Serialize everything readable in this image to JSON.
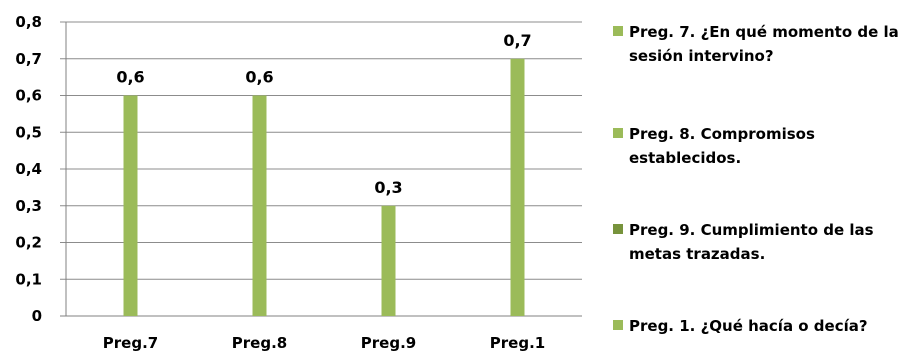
{
  "chart_data": {
    "type": "bar",
    "categories": [
      "Preg.7",
      "Preg.8",
      "Preg.9",
      "Preg.1"
    ],
    "values": [
      0.6,
      0.6,
      0.3,
      0.7
    ],
    "value_labels": [
      "0,6",
      "0,6",
      "0,3",
      "0,7"
    ],
    "ylim": [
      0,
      0.8
    ],
    "yticks": [
      0,
      0.1,
      0.2,
      0.3,
      0.4,
      0.5,
      0.6,
      0.7,
      0.8
    ],
    "ytick_labels": [
      "0",
      "0,1",
      "0,2",
      "0,3",
      "0,4",
      "0,5",
      "0,6",
      "0,7",
      "0,8"
    ],
    "grid": true,
    "legend_placement": "right",
    "bar_color": "#9BBB59",
    "legend": [
      {
        "label": "Preg. 7.  ¿En qué momento de la sesión intervino?",
        "color": "#9BBB59"
      },
      {
        "label": "Preg.  8. Compromisos establecidos.",
        "color": "#9BBB59"
      },
      {
        "label": "Preg. 9. Cumplimiento de las metas trazadas.",
        "color": "#77933C"
      },
      {
        "label": "Preg. 1. ¿Qué hacía o decía?",
        "color": "#9BBB59"
      }
    ]
  }
}
